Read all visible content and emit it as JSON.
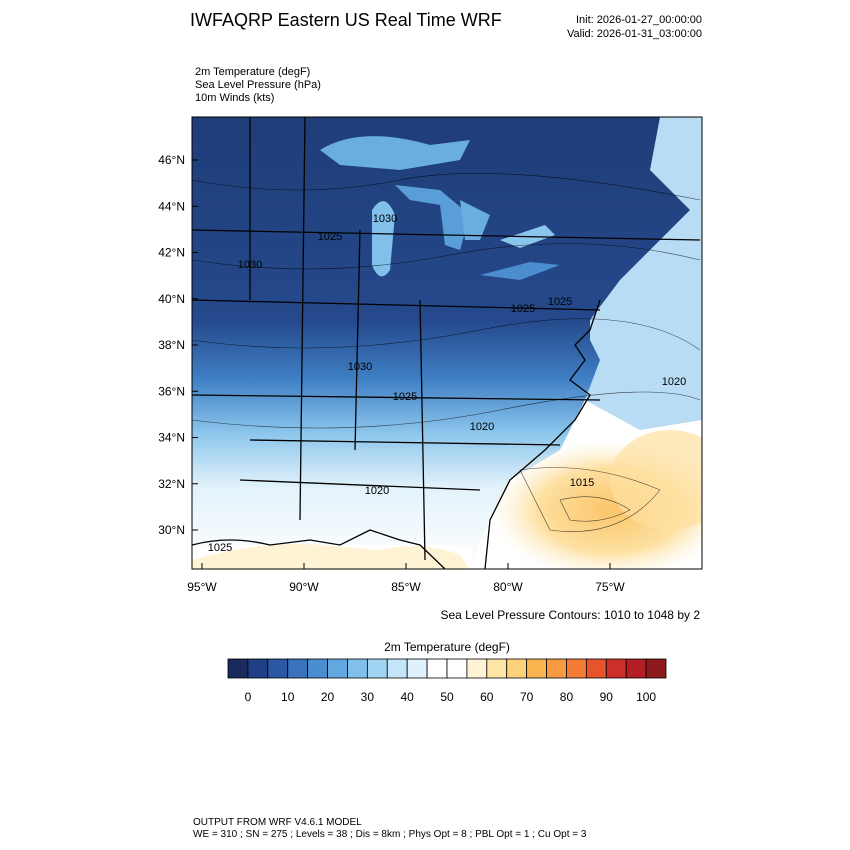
{
  "header": {
    "title": "IWFAQRP Eastern US Real Time WRF",
    "init": "Init: 2026-01-27_00:00:00",
    "valid": "Valid: 2026-01-31_03:00:00"
  },
  "fields": [
    "2m Temperature   (degF)",
    "Sea Level Pressure   (hPa)",
    "10m Winds   (kts)"
  ],
  "map": {
    "lat_labels": [
      "46°N",
      "44°N",
      "42°N",
      "40°N",
      "38°N",
      "36°N",
      "34°N",
      "32°N",
      "30°N"
    ],
    "lon_labels": [
      "95°W",
      "90°W",
      "85°W",
      "80°W",
      "75°W"
    ],
    "contour_labels": [
      "1030",
      "1025",
      "1030",
      "1025",
      "1025",
      "1030",
      "1025",
      "1020",
      "1020",
      "1015",
      "1020",
      "1025"
    ],
    "contour_note": "Sea Level Pressure Contours: 1010 to 1048 by 2"
  },
  "colorbar": {
    "title": "2m Temperature  (degF)",
    "ticks": [
      0,
      10,
      20,
      30,
      40,
      50,
      60,
      70,
      80,
      90,
      100
    ],
    "colors": [
      "#1b2a5c",
      "#213f86",
      "#2b58a5",
      "#3a72bd",
      "#4b8ecf",
      "#62a8de",
      "#80c0ea",
      "#a0d4f3",
      "#c2e5f9",
      "#dff1fc",
      "#ffffff",
      "#ffffff",
      "#fff3d6",
      "#fee5a6",
      "#fdd07a",
      "#fbb550",
      "#f89a3f",
      "#f37b33",
      "#e5542b",
      "#cc2f27",
      "#b31e24",
      "#8f1a1e"
    ]
  },
  "footer": [
    "OUTPUT FROM WRF V4.6.1 MODEL",
    "WE = 310 ; SN = 275 ; Levels = 38 ; Dis = 8km ; Phys Opt = 8 ; PBL Opt = 1 ; Cu Opt = 3"
  ]
}
